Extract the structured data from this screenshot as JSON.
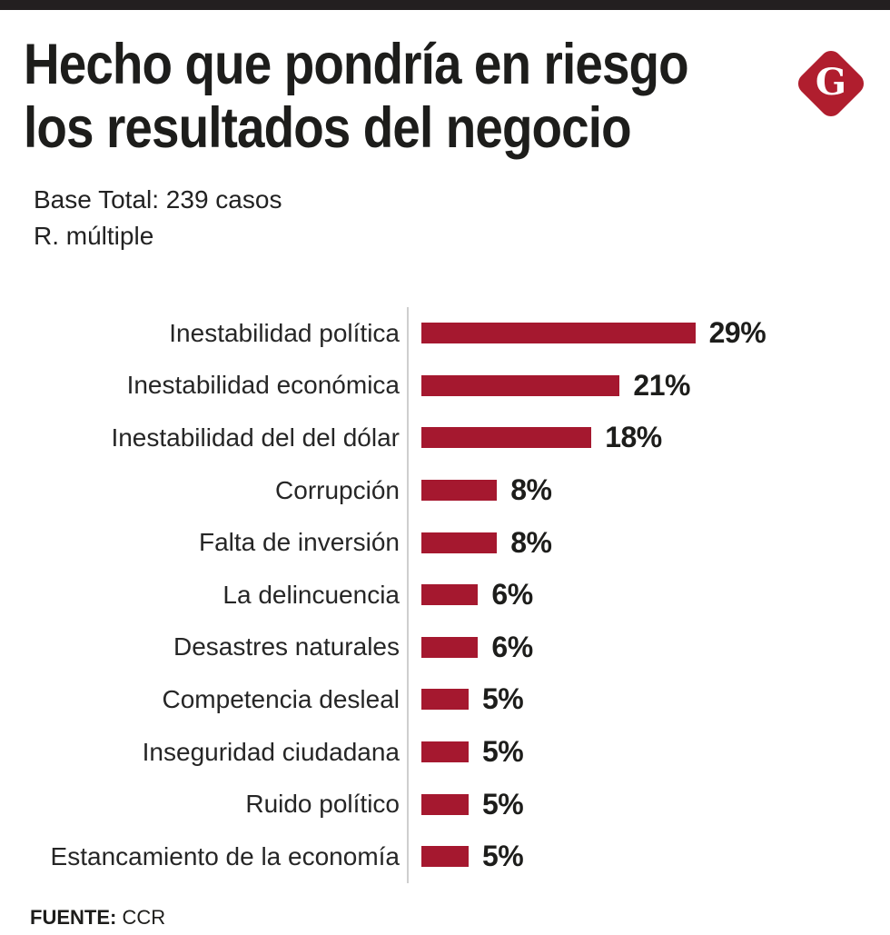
{
  "header": {
    "title_line1": "Hecho que pondría en riesgo",
    "title_line2": "los resultados del negocio",
    "subtitle_line1": "Base Total: 239 casos",
    "subtitle_line2": "R. múltiple",
    "logo_letter": "G"
  },
  "chart_data": {
    "type": "bar",
    "orientation": "horizontal",
    "title": "Hecho que pondría en riesgo los resultados del negocio",
    "categories": [
      "Inestabilidad política",
      "Inestabilidad económica",
      "Inestabilidad del del dólar",
      "Corrupción",
      "Falta de inversión",
      "La delincuencia",
      "Desastres naturales",
      "Competencia desleal",
      "Inseguridad ciudadana",
      "Ruido político",
      "Estancamiento de la economía"
    ],
    "values": [
      29,
      21,
      18,
      8,
      8,
      6,
      6,
      5,
      5,
      5,
      5
    ],
    "unit": "%",
    "xlim": [
      0,
      30
    ],
    "grid": false,
    "legend": false,
    "value_label_position": "end"
  },
  "footer": {
    "source_label": "FUENTE:",
    "source_value": "CCR"
  },
  "colors": {
    "bar_red": "#a5182f",
    "logo_red": "#b01e2e",
    "top_bar": "#231f20",
    "text": "#1d1d1b",
    "axis_line": "#cfcfcf"
  }
}
